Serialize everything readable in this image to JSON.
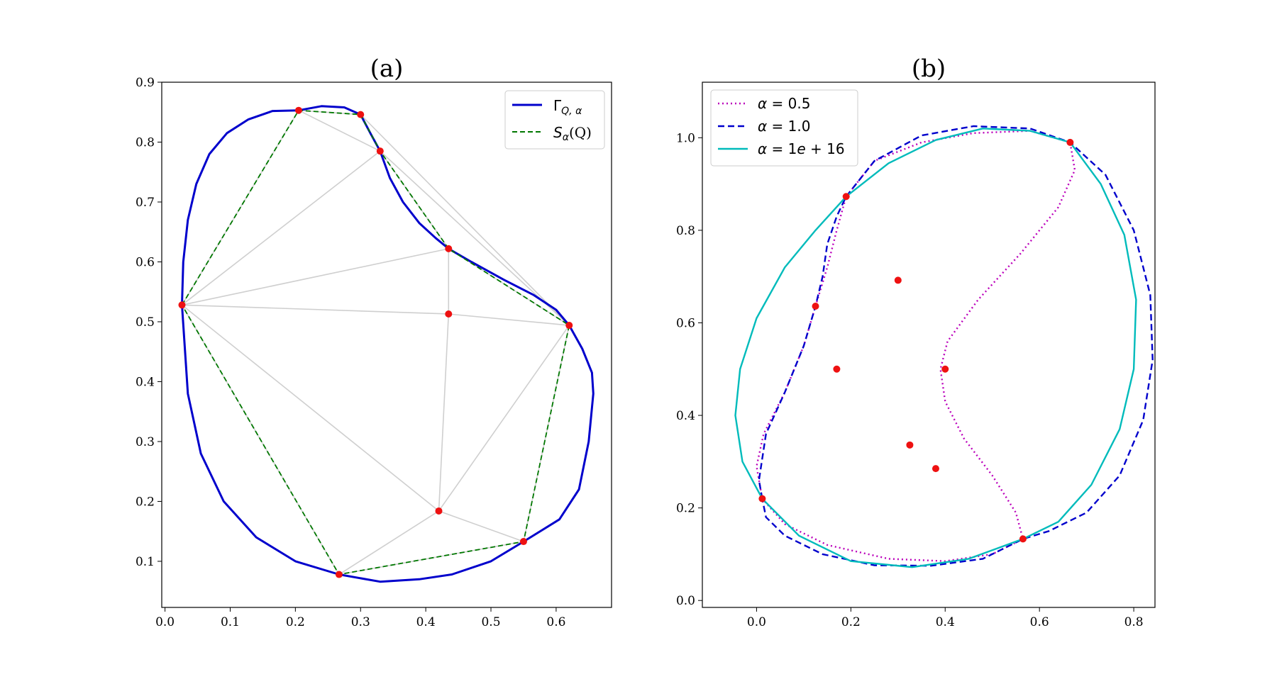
{
  "chart_data": [
    {
      "type": "line",
      "title": "(a)",
      "xlim": [
        -0.005,
        0.685
      ],
      "ylim": [
        0.023,
        0.9
      ],
      "xticks": [
        "0.0",
        "0.1",
        "0.2",
        "0.3",
        "0.4",
        "0.5",
        "0.6"
      ],
      "xtick_values": [
        0.0,
        0.1,
        0.2,
        0.3,
        0.4,
        0.5,
        0.6
      ],
      "yticks": [
        "0.1",
        "0.2",
        "0.3",
        "0.4",
        "0.5",
        "0.6",
        "0.7",
        "0.8",
        "0.9"
      ],
      "ytick_values": [
        0.1,
        0.2,
        0.3,
        0.4,
        0.5,
        0.6,
        0.7,
        0.8,
        0.9
      ],
      "legend": {
        "placement": "top-right",
        "entries": [
          {
            "label": "Γ_{Q,α}",
            "color": "#0000cc",
            "style": "solid"
          },
          {
            "label": "S_α(Q)",
            "color": "#007700",
            "style": "dashed"
          }
        ]
      },
      "points": [
        [
          0.026,
          0.528
        ],
        [
          0.205,
          0.853
        ],
        [
          0.3,
          0.846
        ],
        [
          0.33,
          0.785
        ],
        [
          0.435,
          0.622
        ],
        [
          0.62,
          0.494
        ],
        [
          0.435,
          0.513
        ],
        [
          0.42,
          0.184
        ],
        [
          0.55,
          0.133
        ],
        [
          0.267,
          0.078
        ]
      ],
      "triangulation_edges": [
        [
          0,
          1
        ],
        [
          1,
          2
        ],
        [
          2,
          3
        ],
        [
          1,
          3
        ],
        [
          0,
          3
        ],
        [
          3,
          4
        ],
        [
          3,
          5
        ],
        [
          2,
          5
        ],
        [
          0,
          4
        ],
        [
          4,
          5
        ],
        [
          0,
          6
        ],
        [
          4,
          6
        ],
        [
          6,
          5
        ],
        [
          6,
          7
        ],
        [
          0,
          7
        ],
        [
          7,
          5
        ],
        [
          7,
          8
        ],
        [
          5,
          8
        ],
        [
          7,
          9
        ],
        [
          0,
          9
        ],
        [
          9,
          8
        ]
      ],
      "polygon_order": [
        0,
        1,
        2,
        3,
        4,
        5,
        8,
        9
      ],
      "series": [
        {
          "name": "Γ_{Q,α}",
          "color": "#0000cc",
          "style": "solid",
          "closed": true,
          "x": [
            0.026,
            0.028,
            0.035,
            0.048,
            0.068,
            0.095,
            0.128,
            0.165,
            0.205,
            0.24,
            0.275,
            0.3,
            0.315,
            0.33,
            0.345,
            0.365,
            0.39,
            0.415,
            0.435,
            0.47,
            0.52,
            0.565,
            0.6,
            0.62,
            0.64,
            0.655,
            0.657,
            0.65,
            0.635,
            0.605,
            0.55,
            0.5,
            0.44,
            0.39,
            0.33,
            0.267,
            0.2,
            0.14,
            0.09,
            0.055,
            0.035,
            0.026
          ],
          "y": [
            0.528,
            0.6,
            0.67,
            0.73,
            0.78,
            0.815,
            0.838,
            0.852,
            0.853,
            0.86,
            0.858,
            0.846,
            0.815,
            0.785,
            0.74,
            0.7,
            0.665,
            0.64,
            0.622,
            0.6,
            0.57,
            0.545,
            0.52,
            0.494,
            0.455,
            0.415,
            0.38,
            0.3,
            0.22,
            0.17,
            0.133,
            0.1,
            0.078,
            0.07,
            0.066,
            0.078,
            0.1,
            0.14,
            0.2,
            0.28,
            0.38,
            0.528
          ]
        },
        {
          "name": "S_α(Q)",
          "color": "#007700",
          "style": "dashed",
          "closed": true,
          "x": [
            0.026,
            0.205,
            0.3,
            0.33,
            0.435,
            0.62,
            0.55,
            0.267
          ],
          "y": [
            0.528,
            0.853,
            0.846,
            0.785,
            0.622,
            0.494,
            0.133,
            0.078
          ]
        }
      ]
    },
    {
      "type": "line",
      "title": "(b)",
      "xlim": [
        -0.115,
        0.845
      ],
      "ylim": [
        -0.015,
        1.12
      ],
      "xticks": [
        "0.0",
        "0.2",
        "0.4",
        "0.6",
        "0.8"
      ],
      "xtick_values": [
        0.0,
        0.2,
        0.4,
        0.6,
        0.8
      ],
      "yticks": [
        "0.0",
        "0.2",
        "0.4",
        "0.6",
        "0.8",
        "1.0"
      ],
      "ytick_values": [
        0.0,
        0.2,
        0.4,
        0.6,
        0.8,
        1.0
      ],
      "legend": {
        "placement": "top-left",
        "entries": [
          {
            "label": "α = 0.5",
            "color": "#bb00bb",
            "style": "dotted"
          },
          {
            "label": "α = 1.0",
            "color": "#0000cc",
            "style": "dashed"
          },
          {
            "label": "α = 1e + 16",
            "color": "#00bbbb",
            "style": "solid"
          }
        ]
      },
      "points": [
        [
          0.012,
          0.22
        ],
        [
          0.125,
          0.636
        ],
        [
          0.19,
          0.873
        ],
        [
          0.665,
          0.99
        ],
        [
          0.565,
          0.133
        ],
        [
          0.3,
          0.692
        ],
        [
          0.17,
          0.5
        ],
        [
          0.4,
          0.5
        ],
        [
          0.325,
          0.336
        ],
        [
          0.38,
          0.285
        ]
      ],
      "series": [
        {
          "name": "α = 0.5",
          "color": "#bb00bb",
          "style": "dotted",
          "closed": true,
          "x": [
            0.012,
            0.0,
            0.015,
            0.06,
            0.1,
            0.125,
            0.15,
            0.17,
            0.19,
            0.25,
            0.35,
            0.46,
            0.58,
            0.665,
            0.675,
            0.64,
            0.56,
            0.47,
            0.405,
            0.39,
            0.4,
            0.44,
            0.5,
            0.55,
            0.565,
            0.5,
            0.4,
            0.28,
            0.15,
            0.06,
            0.012
          ],
          "y": [
            0.22,
            0.29,
            0.36,
            0.45,
            0.55,
            0.636,
            0.72,
            0.8,
            0.873,
            0.95,
            0.99,
            1.01,
            1.015,
            0.99,
            0.93,
            0.85,
            0.75,
            0.65,
            0.56,
            0.5,
            0.43,
            0.35,
            0.27,
            0.19,
            0.133,
            0.1,
            0.085,
            0.09,
            0.12,
            0.165,
            0.22
          ]
        },
        {
          "name": "α = 1.0",
          "color": "#0000cc",
          "style": "dashed",
          "closed": true,
          "x": [
            0.012,
            0.005,
            0.02,
            0.06,
            0.1,
            0.125,
            0.14,
            0.15,
            0.17,
            0.19,
            0.25,
            0.35,
            0.46,
            0.58,
            0.665,
            0.74,
            0.8,
            0.835,
            0.84,
            0.82,
            0.77,
            0.7,
            0.62,
            0.565,
            0.48,
            0.37,
            0.25,
            0.14,
            0.06,
            0.02,
            0.012
          ],
          "y": [
            0.22,
            0.26,
            0.36,
            0.45,
            0.55,
            0.636,
            0.7,
            0.77,
            0.83,
            0.873,
            0.95,
            1.005,
            1.025,
            1.02,
            0.99,
            0.92,
            0.8,
            0.66,
            0.52,
            0.39,
            0.27,
            0.19,
            0.15,
            0.133,
            0.09,
            0.075,
            0.076,
            0.1,
            0.14,
            0.18,
            0.22
          ]
        },
        {
          "name": "α = 1e + 16",
          "color": "#00bbbb",
          "style": "solid",
          "closed": true,
          "x": [
            0.012,
            -0.03,
            -0.045,
            -0.035,
            0.0,
            0.06,
            0.125,
            0.19,
            0.28,
            0.38,
            0.48,
            0.58,
            0.665,
            0.73,
            0.78,
            0.805,
            0.8,
            0.77,
            0.71,
            0.64,
            0.565,
            0.45,
            0.33,
            0.2,
            0.09,
            0.012
          ],
          "y": [
            0.22,
            0.3,
            0.4,
            0.5,
            0.61,
            0.72,
            0.8,
            0.873,
            0.945,
            0.995,
            1.02,
            1.015,
            0.99,
            0.9,
            0.79,
            0.65,
            0.5,
            0.37,
            0.25,
            0.17,
            0.133,
            0.09,
            0.072,
            0.085,
            0.14,
            0.22
          ]
        }
      ]
    }
  ]
}
